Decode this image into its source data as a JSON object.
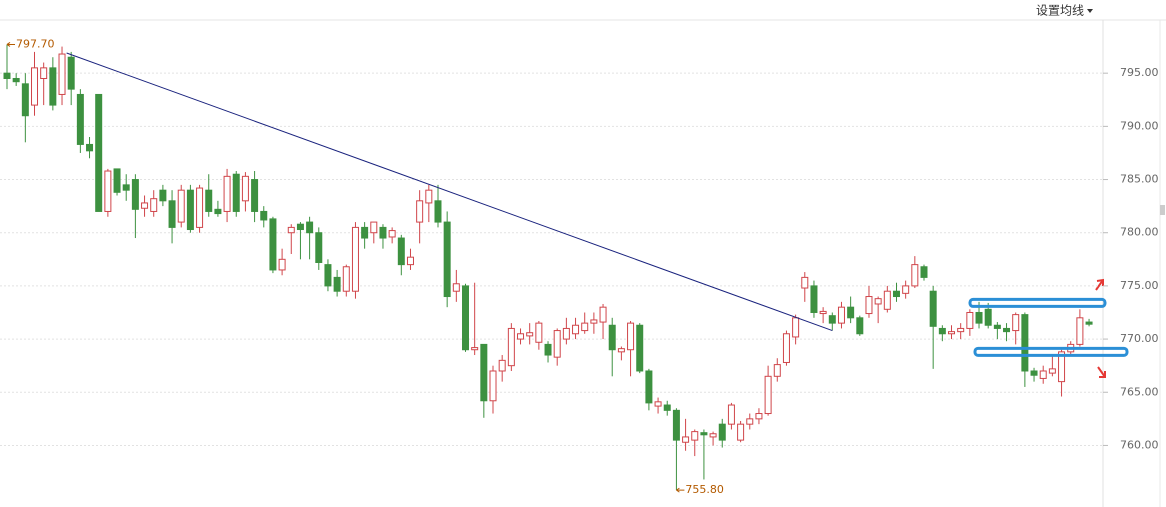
{
  "menu": "设置均线",
  "chart_data": {
    "type": "candlestick",
    "up_color": "#d0454a",
    "down_color": "#3d9140",
    "ylim": [
      754.4,
      800
    ],
    "yticks": [
      {
        "value": 760,
        "label": "760.00"
      },
      {
        "value": 765,
        "label": "765.00"
      },
      {
        "value": 770,
        "label": "770.00"
      },
      {
        "value": 775,
        "label": "775.00"
      },
      {
        "value": 780,
        "label": "780.00"
      },
      {
        "value": 785,
        "label": "785.00"
      },
      {
        "value": 790,
        "label": "790.00"
      },
      {
        "value": 795,
        "label": "795.00"
      }
    ],
    "grid": true,
    "open": [
      795,
      794.5,
      794,
      792,
      794.5,
      795.5,
      793,
      796.5,
      793,
      788.3,
      793,
      782,
      786,
      784.5,
      785,
      782.3,
      782,
      784,
      783,
      781,
      784,
      780.5,
      784,
      782.2,
      782,
      785.5,
      783,
      785,
      782,
      781.3,
      776.5,
      780,
      780.8,
      781,
      780,
      777,
      775.8,
      774.5,
      774.5,
      780.5,
      780,
      780.5,
      779.6,
      779.5,
      777,
      781,
      782.8,
      783,
      781,
      774.5,
      775,
      769,
      769.5,
      764.2,
      767,
      767.5,
      770,
      770.3,
      769.7,
      769.5,
      768.3,
      770,
      770.5,
      770.8,
      771.5,
      771.6,
      771.3,
      768.8,
      769,
      771.3,
      767,
      763.7,
      763.8,
      763.3,
      760.3,
      760.5,
      761.2,
      760.8,
      762,
      762,
      760.5,
      762,
      762.5,
      763,
      766.5,
      767.8,
      770.2,
      774.8,
      775,
      772.4,
      772.2,
      771.5,
      773,
      772,
      772.4,
      773.3,
      772.8,
      774.5,
      774.3,
      775,
      776.8,
      774.5,
      771,
      770.5,
      770.7,
      771,
      772.5,
      772.8,
      771.3,
      771,
      770.8,
      772.3,
      767,
      766.3,
      766.8,
      766,
      768.8,
      769.5,
      771.6
    ],
    "high": [
      797.7,
      795,
      795,
      797,
      796,
      796.5,
      797.5,
      797,
      793.5,
      789,
      793,
      786,
      786,
      785.5,
      785.5,
      783.5,
      784,
      784.5,
      784,
      784.5,
      784.5,
      784.5,
      785.5,
      783,
      786,
      785.8,
      785.7,
      785.8,
      782.5,
      781.5,
      778.5,
      780.8,
      781,
      781.5,
      780.5,
      777.5,
      776.5,
      777,
      781,
      781,
      781,
      780.8,
      780.5,
      779.8,
      778.5,
      784,
      784.5,
      784.5,
      782,
      776.5,
      775.2,
      775.3,
      769.5,
      767.5,
      768.5,
      771.5,
      771,
      771.5,
      771.7,
      769.8,
      771,
      772,
      772,
      772.5,
      772.5,
      773.3,
      772,
      769.3,
      771.7,
      771.5,
      767.2,
      764.5,
      764.2,
      763.5,
      762.5,
      761.5,
      761.5,
      761.3,
      762.5,
      764,
      762.3,
      763,
      763.5,
      767.5,
      768.2,
      770.8,
      772.3,
      776.3,
      775.5,
      773,
      772.5,
      773.5,
      774,
      772.2,
      775,
      774,
      775,
      775.3,
      775.5,
      777.8,
      777,
      775,
      771.3,
      771.3,
      771.5,
      772.8,
      773.5,
      773.4,
      771.6,
      771.5,
      772.5,
      772.5,
      767.3,
      767.5,
      768.5,
      769,
      769.8,
      772.8,
      771.9
    ],
    "low": [
      793.5,
      793.8,
      788.5,
      791,
      792,
      791.5,
      792,
      792,
      787.5,
      787,
      782,
      781.5,
      783.5,
      783,
      779.5,
      781.5,
      781.5,
      782.5,
      779,
      780.5,
      780,
      780,
      781.5,
      781.5,
      781,
      781.5,
      782,
      781,
      780.5,
      776.2,
      776,
      778,
      777.5,
      777.5,
      776.5,
      774.5,
      774,
      774,
      773.8,
      778.5,
      779,
      778.5,
      779,
      776,
      776.5,
      779,
      781,
      780.5,
      773,
      773.5,
      768.8,
      768.5,
      762.6,
      763,
      766,
      767,
      769.5,
      769.5,
      769,
      767.8,
      767.5,
      769.5,
      770,
      770.5,
      770.5,
      770,
      766.5,
      768,
      766.5,
      766.8,
      763.3,
      763,
      762.8,
      755.8,
      759.5,
      759,
      756.8,
      760,
      759.8,
      761.5,
      760.3,
      761.5,
      762,
      762.8,
      766,
      767.5,
      769.5,
      773.5,
      772,
      771.5,
      770.8,
      771,
      771.5,
      770.3,
      772,
      771.5,
      772.5,
      773.5,
      773.8,
      774.8,
      775.5,
      767.2,
      769.8,
      770,
      770,
      770.3,
      771,
      771,
      770,
      769.8,
      769.5,
      765.5,
      766,
      765.8,
      766.5,
      764.6,
      768.5,
      769.3,
      771.2
    ],
    "close": [
      794.5,
      794.2,
      791,
      795.5,
      795.5,
      792,
      796.8,
      793.5,
      788.3,
      787.7,
      782,
      785.8,
      783.8,
      784,
      782.2,
      782.8,
      783.2,
      783,
      780.5,
      784,
      780.3,
      784.2,
      782,
      781.8,
      785.3,
      782,
      785.3,
      782,
      781.2,
      776.5,
      777.5,
      780.5,
      780.3,
      780,
      777.2,
      775,
      774.5,
      776.8,
      780.5,
      779.5,
      781,
      779.5,
      780.2,
      777,
      777.7,
      783,
      784,
      781,
      774,
      775.2,
      769,
      769.2,
      764.2,
      767,
      768,
      771,
      770.5,
      770.6,
      771.5,
      768.5,
      770.8,
      771,
      771.3,
      771.5,
      771.8,
      773,
      769,
      769.1,
      771.5,
      767,
      764,
      764.1,
      763.3,
      760.5,
      760.8,
      761.3,
      761,
      761.1,
      760.5,
      763.8,
      762,
      762.5,
      763,
      766.5,
      767.6,
      770.5,
      772,
      775.8,
      772.5,
      772.6,
      771.5,
      773,
      772,
      770.5,
      774,
      773.8,
      774.5,
      774,
      775,
      777,
      775.8,
      771.2,
      770.5,
      770.7,
      771,
      772.5,
      771.5,
      771.3,
      771,
      770.7,
      772.3,
      767,
      766.6,
      767,
      767.2,
      768.8,
      769.5,
      772,
      771.4
    ],
    "max_label": "797.70",
    "min_label": "755.80",
    "trendline": {
      "x": [
        6.5,
        90
      ],
      "y": [
        796.9,
        770.8
      ],
      "color": "#1a237e"
    },
    "levels": [
      773.4,
      768.8
    ],
    "level_color": "#2b8fd6"
  }
}
